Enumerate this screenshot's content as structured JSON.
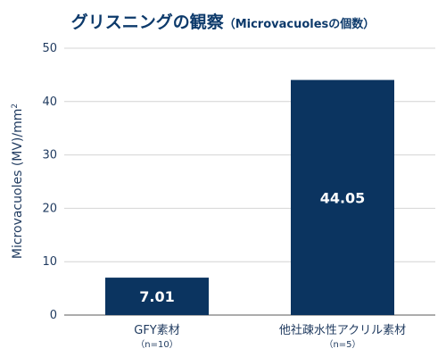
{
  "chart_data": {
    "type": "bar",
    "title": "グリスニングの観察",
    "subtitle": "（Microvacuolesの個数）",
    "ylabel": "Microvacuoles (MV)/mm",
    "ylabel_sup": "2",
    "xlabel": "",
    "ylim": [
      0,
      50
    ],
    "yticks": [
      "0",
      "10",
      "20",
      "30",
      "40",
      "50"
    ],
    "grid": true,
    "categories": [
      "GFY素材",
      "他社疎水性アクリル素材"
    ],
    "category_notes": [
      "（n=10）",
      "（n=5）"
    ],
    "values": [
      7.01,
      44.05
    ],
    "value_labels": [
      "7.01",
      "44.05"
    ],
    "bar_color": "#0b3460"
  }
}
